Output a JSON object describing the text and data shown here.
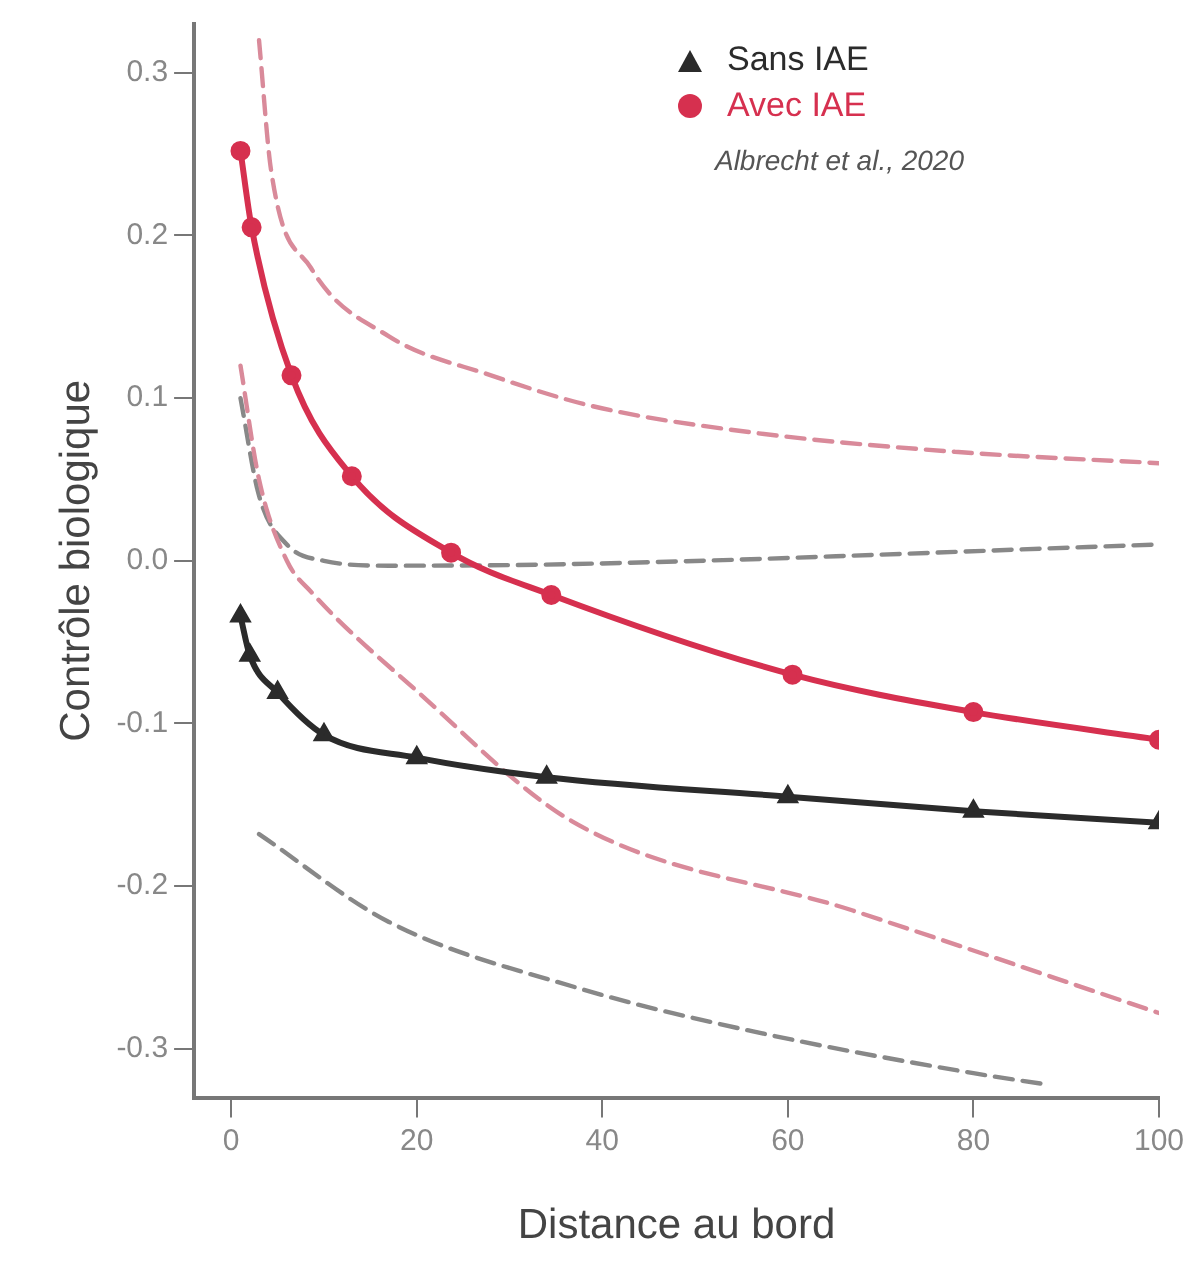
{
  "chart_data": {
    "type": "line",
    "xlabel": "Distance au bord",
    "ylabel": "Contrôle biologique",
    "xlim": [
      -4,
      100
    ],
    "xticks": [
      0,
      20,
      40,
      60,
      80,
      100
    ],
    "ylim": [
      -0.33,
      0.33
    ],
    "yticks": [
      -0.3,
      -0.2,
      -0.1,
      {
        "value": 0,
        "label": "0.0"
      },
      0.1,
      0.2,
      0.3
    ],
    "grid": false,
    "legend": "top right",
    "line_style": "solid",
    "annotations": [
      "Albrecht et al., 2020"
    ],
    "series": [
      {
        "name": "Sans IAE",
        "color": "#2b2b2b",
        "marker": "triangle",
        "x": [
          1,
          2,
          5,
          10,
          20,
          34,
          60,
          80,
          100
        ],
        "values": [
          -0.034,
          -0.058,
          -0.081,
          -0.107,
          -0.121,
          -0.133,
          -0.145,
          -0.154,
          -0.161
        ]
      },
      {
        "name": "Avec IAE",
        "color": "#d6304f",
        "marker": "circle",
        "x": [
          1,
          2.2,
          6.5,
          13,
          23.7,
          34.5,
          60.5,
          80,
          100
        ],
        "values": [
          0.252,
          0.205,
          0.114,
          0.052,
          0.005,
          -0.021,
          -0.07,
          -0.093,
          -0.11
        ]
      },
      {
        "color": "#d98a9a",
        "line_style": "dashed",
        "x": [
          3,
          4.3,
          8.6,
          17,
          28,
          39,
          56,
          78,
          100
        ],
        "values": [
          0.32,
          0.24,
          0.18,
          0.138,
          0.114,
          0.095,
          0.079,
          0.067,
          0.06
        ]
      },
      {
        "color": "#d98a9a",
        "line_style": "dashed",
        "x": [
          1,
          3,
          6,
          8.6,
          20,
          36.7,
          67,
          100
        ],
        "values": [
          0.12,
          0.05,
          0.0,
          -0.019,
          -0.08,
          -0.16,
          -0.215,
          -0.278
        ]
      },
      {
        "color": "#888888",
        "line_style": "dashed",
        "x": [
          1,
          3,
          6,
          10,
          17,
          37,
          100
        ],
        "values": [
          0.1,
          0.04,
          0.01,
          0.0,
          -0.003,
          -0.002,
          0.01
        ]
      },
      {
        "color": "#888888",
        "line_style": "dashed",
        "x": [
          3,
          17,
          37,
          56,
          80,
          88
        ],
        "values": [
          -0.168,
          -0.222,
          -0.262,
          -0.289,
          -0.315,
          -0.322
        ]
      }
    ]
  }
}
